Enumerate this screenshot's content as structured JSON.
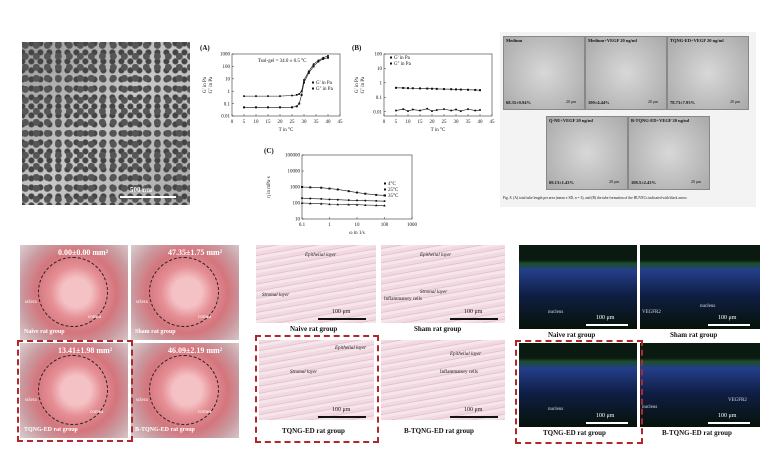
{
  "tem": {
    "scale": "500 nm"
  },
  "chart_data": [
    {
      "type": "line",
      "label": "(A)",
      "xlabel": "T in °C",
      "ylabel": [
        "G' in Pa",
        "G'' in Pa"
      ],
      "annotation": "Tsol-gel = 34.0 ± 0.5 °C",
      "log_y": true,
      "x": [
        5,
        10,
        15,
        20,
        25,
        27,
        28,
        29,
        30,
        32,
        34,
        36,
        38,
        40
      ],
      "series": [
        {
          "name": "G' in Pa",
          "color": "#111111",
          "marker": "square",
          "values": [
            0.05,
            0.05,
            0.05,
            0.05,
            0.05,
            0.06,
            0.1,
            0.5,
            5,
            30,
            100,
            250,
            400,
            500
          ]
        },
        {
          "name": "G'' in Pa",
          "color": "#111111",
          "marker": "circle",
          "values": [
            0.4,
            0.4,
            0.4,
            0.4,
            0.45,
            0.5,
            0.6,
            1,
            8,
            40,
            150,
            300,
            500,
            700
          ]
        }
      ],
      "xlim": [
        0,
        45
      ],
      "xticks": [
        0,
        5,
        10,
        15,
        20,
        25,
        30,
        35,
        40,
        45
      ],
      "ylim": [
        0.01,
        1000
      ],
      "yticks": [
        0.01,
        0.1,
        1,
        10,
        100,
        1000
      ],
      "legend": "right"
    },
    {
      "type": "line",
      "label": "(B)",
      "xlabel": "T in °C",
      "ylabel": [
        "G' in Pa",
        "G'' in Pa"
      ],
      "log_y": true,
      "x": [
        5,
        8,
        10,
        12,
        15,
        18,
        20,
        22,
        25,
        28,
        30,
        32,
        35,
        38,
        40
      ],
      "series": [
        {
          "name": "G' in Pa",
          "color": "#111111",
          "marker": "square",
          "values": [
            0.45,
            0.44,
            0.43,
            0.42,
            0.41,
            0.4,
            0.39,
            0.38,
            0.37,
            0.36,
            0.35,
            0.34,
            0.33,
            0.32,
            0.31
          ]
        },
        {
          "name": "G'' in Pa",
          "color": "#111111",
          "marker": "circle",
          "values": [
            0.012,
            0.015,
            0.011,
            0.014,
            0.012,
            0.016,
            0.011,
            0.013,
            0.015,
            0.012,
            0.014,
            0.011,
            0.015,
            0.012,
            0.013
          ]
        }
      ],
      "xlim": [
        0,
        45
      ],
      "xticks": [
        0,
        5,
        10,
        15,
        20,
        25,
        30,
        35,
        40,
        45
      ],
      "ylim": [
        0.005,
        100
      ],
      "yticks": [
        0.01,
        0.1,
        1,
        10,
        100
      ],
      "legend": "top"
    },
    {
      "type": "line",
      "label": "(C)",
      "xlabel": "ω in 1/s",
      "ylabel": [
        "η in mPa·s"
      ],
      "log_x": true,
      "log_y": true,
      "x": [
        0.1,
        0.2,
        0.5,
        1,
        2,
        5,
        10,
        20,
        50,
        100
      ],
      "series": [
        {
          "name": "4°C",
          "color": "#111111",
          "marker": "square",
          "values": [
            1000,
            950,
            900,
            800,
            700,
            550,
            450,
            380,
            320,
            300
          ]
        },
        {
          "name": "25°C",
          "color": "#111111",
          "marker": "circle",
          "values": [
            200,
            190,
            180,
            170,
            160,
            150,
            145,
            140,
            135,
            130
          ]
        },
        {
          "name": "35°C",
          "color": "#111111",
          "marker": "triangle",
          "values": [
            100,
            95,
            90,
            85,
            82,
            80,
            78,
            75,
            72,
            70
          ]
        }
      ],
      "xlim": [
        0.1,
        1000
      ],
      "xticks": [
        0.1,
        1,
        10,
        100,
        1000
      ],
      "ylim": [
        10,
        100000
      ],
      "yticks": [
        10,
        100,
        1000,
        10000,
        100000
      ],
      "legend": "right"
    }
  ],
  "tube": {
    "panels": [
      {
        "label": "Medium",
        "value": "68.35±0.94%"
      },
      {
        "label": "Medium+VEGF 20 ng/ml",
        "value": "100±4.44%"
      },
      {
        "label": "TQNG-ED+VEGF 20 ng/ml",
        "value": "78.73±7.93%"
      },
      {
        "label": "Q-NE+VEGF 20 ng/ml",
        "value": "69.13±1.43%"
      },
      {
        "label": "B-TQNG-ED+VEGF 20 ng/ml",
        "value": "108.5±2.43%"
      }
    ],
    "scale": "20 μm",
    "caption": "Fig. 8. (A) total tube length per area (mean ± SD, n = 3), and (B) the tube formation of the HUVECs indicated with black arrow."
  },
  "eyes": {
    "panels": [
      {
        "value": "0.00±0.00 mm²",
        "group": "Naive rat group"
      },
      {
        "value": "47.35±1.75 mm²",
        "group": "Sham rat group"
      },
      {
        "value": "13.41±1.98 mm²",
        "group": "TQNG-ED rat group"
      },
      {
        "value": "46.09±2.19 mm²",
        "group": "B-TQNG-ED rat group"
      }
    ],
    "sclera": "sclera",
    "cornea": "cornea"
  },
  "histology": {
    "panels": [
      {
        "group": "Naive rat group"
      },
      {
        "group": "Sham rat group"
      },
      {
        "group": "TQNG-ED rat group"
      },
      {
        "group": "B-TQNG-ED rat group"
      }
    ],
    "epithelial": "Epithelial layer",
    "stromal": "Stromal layer",
    "inflammatory": "Inflammatory cells",
    "scale": "100 μm"
  },
  "fluorescence": {
    "panels": [
      {
        "group": "Naive rat group"
      },
      {
        "group": "Sham rat group"
      },
      {
        "group": "TQNG-ED rat group"
      },
      {
        "group": "B-TQNG-ED rat group"
      }
    ],
    "nucleus": "nucleus",
    "vegfr2": "VEGFR2",
    "scale": "100 μm"
  }
}
